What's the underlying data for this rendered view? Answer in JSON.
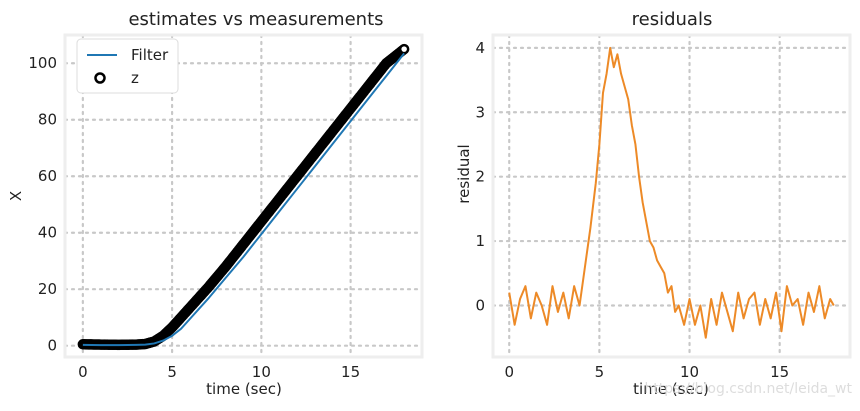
{
  "colors": {
    "filter": "#1f77b4",
    "measurement": "#000000",
    "residual": "#ed8a27",
    "grid": "#c8c8c8",
    "frame": "#eeeeee"
  },
  "watermark": "https://blog.csdn.net/leida_wt",
  "chart_data": [
    {
      "type": "line",
      "title": "estimates vs measurements",
      "xlabel": "time (sec)",
      "ylabel": "X",
      "xlim": [
        -1,
        19
      ],
      "ylim": [
        -4,
        110
      ],
      "xticks": [
        0,
        5,
        10,
        15
      ],
      "yticks": [
        0,
        20,
        40,
        60,
        80,
        100
      ],
      "grid": true,
      "legend": "top-left",
      "series": [
        {
          "name": "Filter",
          "kind": "line",
          "x": [
            0,
            1,
            2,
            3,
            3.5,
            4,
            4.5,
            5,
            5.5,
            6,
            6.5,
            7,
            8,
            9,
            10,
            11,
            12,
            13,
            14,
            15,
            16,
            17,
            18
          ],
          "y": [
            0.3,
            0.2,
            0.2,
            0.3,
            0.4,
            0.8,
            1.8,
            3.5,
            6,
            9.5,
            13,
            16.5,
            24,
            31.5,
            39.5,
            47.5,
            55.5,
            63.5,
            71.5,
            79.5,
            87.5,
            95.5,
            103.5
          ]
        },
        {
          "name": "z",
          "kind": "scatter",
          "x": [
            0,
            1,
            2,
            3,
            3.5,
            4,
            4.5,
            5,
            5.5,
            6,
            6.5,
            7,
            8,
            9,
            10,
            11,
            12,
            13,
            14,
            15,
            16,
            17,
            18
          ],
          "y": [
            0.5,
            0.4,
            0.3,
            0.4,
            0.6,
            1.5,
            3.5,
            6.5,
            10,
            13.5,
            17,
            20.5,
            28,
            36,
            44,
            52,
            60,
            68,
            76,
            84,
            92,
            100,
            105
          ]
        }
      ]
    },
    {
      "type": "line",
      "title": "residuals",
      "xlabel": "time (sec)",
      "ylabel": "residual",
      "xlim": [
        -0.9,
        18.9
      ],
      "ylim": [
        -0.8,
        4.2
      ],
      "xticks": [
        0,
        5,
        10,
        15
      ],
      "yticks": [
        0,
        1,
        2,
        3,
        4
      ],
      "grid": true,
      "series": [
        {
          "name": "",
          "x": [
            0,
            0.3,
            0.6,
            0.9,
            1.2,
            1.5,
            1.8,
            2.1,
            2.4,
            2.7,
            3.0,
            3.3,
            3.6,
            3.9,
            4.2,
            4.5,
            4.8,
            5.0,
            5.2,
            5.4,
            5.6,
            5.8,
            6.0,
            6.2,
            6.4,
            6.6,
            6.8,
            7.0,
            7.2,
            7.4,
            7.6,
            7.8,
            8.0,
            8.2,
            8.4,
            8.6,
            8.8,
            9.0,
            9.2,
            9.4,
            9.7,
            10.0,
            10.3,
            10.6,
            10.9,
            11.2,
            11.5,
            11.8,
            12.1,
            12.4,
            12.7,
            13.0,
            13.3,
            13.6,
            13.9,
            14.2,
            14.5,
            14.8,
            15.1,
            15.4,
            15.7,
            16.0,
            16.3,
            16.6,
            16.9,
            17.2,
            17.5,
            17.8,
            18.0
          ],
          "y": [
            0.2,
            -0.3,
            0.1,
            0.3,
            -0.2,
            0.2,
            0.0,
            -0.3,
            0.3,
            -0.1,
            0.2,
            -0.2,
            0.3,
            0.0,
            0.6,
            1.2,
            1.9,
            2.5,
            3.3,
            3.6,
            4.0,
            3.7,
            3.9,
            3.6,
            3.4,
            3.2,
            2.8,
            2.5,
            2.0,
            1.6,
            1.3,
            1.0,
            0.9,
            0.7,
            0.6,
            0.5,
            0.2,
            0.3,
            -0.1,
            0.0,
            -0.3,
            0.1,
            -0.3,
            0.0,
            -0.5,
            0.1,
            -0.3,
            0.2,
            -0.1,
            -0.4,
            0.2,
            -0.2,
            0.1,
            0.2,
            -0.3,
            0.1,
            -0.2,
            0.2,
            -0.4,
            0.3,
            0.0,
            0.1,
            -0.3,
            0.2,
            -0.1,
            0.3,
            -0.2,
            0.1,
            0.0
          ]
        }
      ]
    }
  ]
}
